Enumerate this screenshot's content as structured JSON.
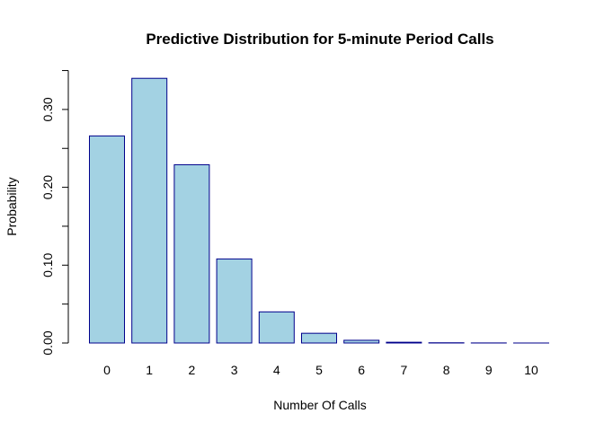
{
  "chart_data": {
    "type": "bar",
    "title": "Predictive Distribution for 5-minute Period Calls",
    "xlabel": "Number Of Calls",
    "ylabel": "Probability",
    "categories": [
      "0",
      "1",
      "2",
      "3",
      "4",
      "5",
      "6",
      "7",
      "8",
      "9",
      "10"
    ],
    "values": [
      0.266,
      0.34,
      0.229,
      0.108,
      0.04,
      0.0125,
      0.0035,
      0.001,
      0.0003,
      0.0001,
      2e-05
    ],
    "ylim": [
      0,
      0.35
    ],
    "yticks": [
      0.0,
      0.1,
      0.2,
      0.3
    ],
    "ytick_labels": [
      "0.00",
      "0.10",
      "0.20",
      "0.30"
    ],
    "grid": false,
    "legend": "none",
    "colors": {
      "bar_fill": "#a3d2e3",
      "bar_border": "#00008b"
    }
  }
}
